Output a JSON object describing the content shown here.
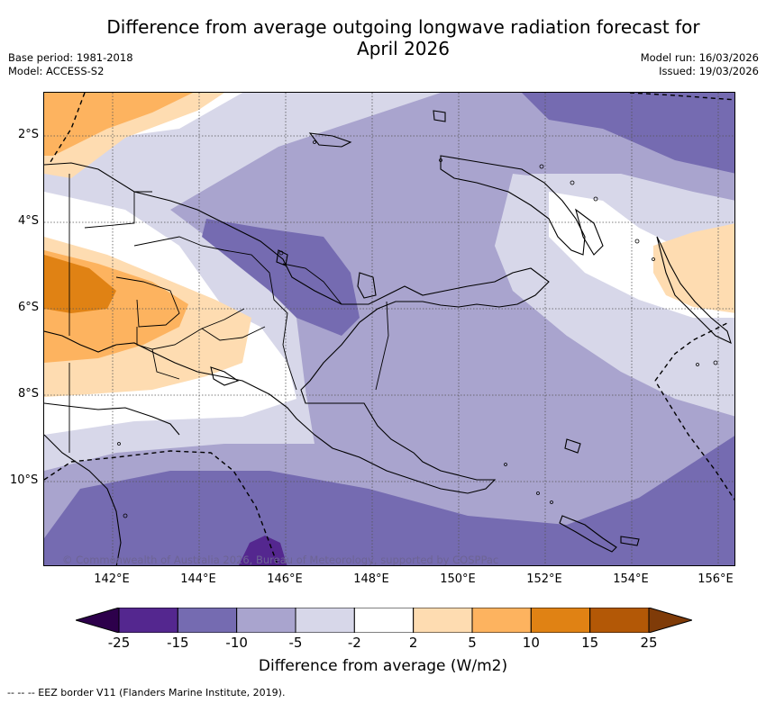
{
  "header": {
    "title_line1": "Difference from average outgoing longwave radiation forecast for",
    "title_line2": "April 2026",
    "base_period": "Base period: 1981-2018",
    "model": "Model: ACCESS-S2",
    "model_run": "Model run: 16/03/2026",
    "issued": "Issued: 19/03/2026"
  },
  "map": {
    "lat_labels": [
      "2°S",
      "4°S",
      "6°S",
      "8°S",
      "10°S"
    ],
    "lon_labels": [
      "142°E",
      "144°E",
      "146°E",
      "148°E",
      "150°E",
      "152°E",
      "154°E",
      "156°E"
    ],
    "credit": "© Commonwealth of Australia 2026, Bureau of Meteorology, supported by COSPPac"
  },
  "colorbar": {
    "ticks": [
      "-25",
      "-15",
      "-10",
      "-5",
      "-2",
      "2",
      "5",
      "10",
      "15",
      "25"
    ],
    "colors": [
      "#54278f",
      "#756bb1",
      "#a9a4ce",
      "#d7d7e9",
      "#ffffff",
      "#fedcb1",
      "#fdb35f",
      "#e08214",
      "#b35806"
    ],
    "under_color": "#2d004b",
    "over_color": "#7f3b08",
    "label": "Difference from average (W/m2)"
  },
  "footnote": "-- -- -- EEZ border V11 (Flanders Marine Institute, 2019)."
}
